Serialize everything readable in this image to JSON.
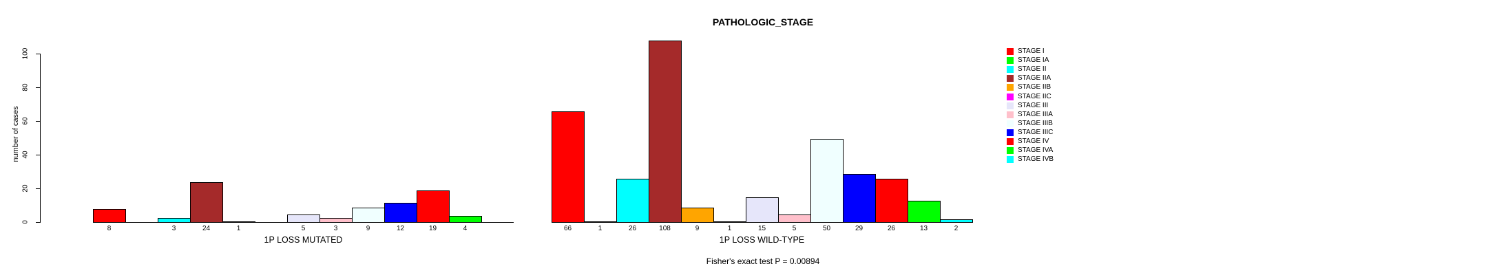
{
  "title": "PATHOLOGIC_STAGE",
  "footer": {
    "fisher_text": "Fisher's exact test P = 0.00894"
  },
  "y_axis": {
    "label": "number of cases"
  },
  "chart_data": {
    "type": "bar",
    "title": "PATHOLOGIC_STAGE",
    "xlabel": "",
    "ylabel": "number of cases",
    "ylim": [
      0,
      100
    ],
    "yticks": [
      0,
      20,
      40,
      60,
      80,
      100
    ],
    "grid": false,
    "legend_position": "right",
    "bar_value_labels_shown": true,
    "categories": [
      "STAGE I",
      "STAGE IA",
      "STAGE II",
      "STAGE IIA",
      "STAGE IIB",
      "STAGE IIC",
      "STAGE III",
      "STAGE IIIA",
      "STAGE IIIB",
      "STAGE IIIC",
      "STAGE IV",
      "STAGE IVA",
      "STAGE IVB"
    ],
    "colors": [
      "#FF0000",
      "#00FF00",
      "#00FFFF",
      "#A52A2A",
      "#FFA500",
      "#FF00FF",
      "#E6E6FA",
      "#FFC0CB",
      "#F0FFFF",
      "#0000FF",
      "#FF0000",
      "#00FF00",
      "#00FFFF"
    ],
    "series": [
      {
        "name": "1P LOSS MUTATED",
        "values": [
          8,
          0,
          3,
          24,
          1,
          0,
          5,
          3,
          9,
          12,
          19,
          4,
          0
        ]
      },
      {
        "name": "1P LOSS WILD-TYPE",
        "values": [
          66,
          1,
          26,
          108,
          9,
          1,
          15,
          5,
          50,
          29,
          26,
          13,
          2
        ]
      }
    ],
    "annotation": "Fisher's exact test P = 0.00894"
  }
}
